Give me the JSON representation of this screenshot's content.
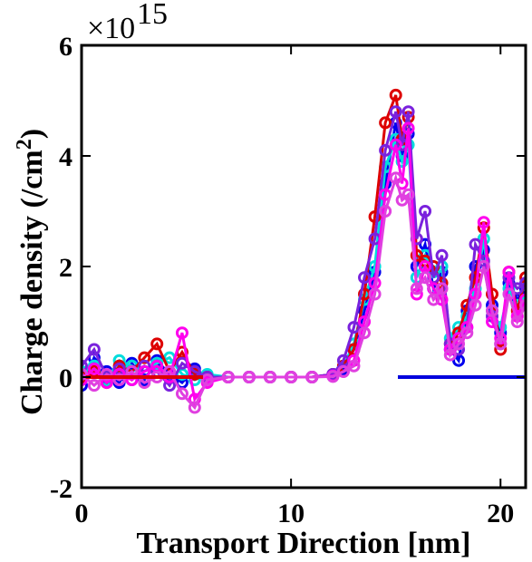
{
  "chart_data": {
    "type": "line",
    "title": "",
    "xlabel": "Transport Direction [nm]",
    "ylabel_main": "Charge density (/cm",
    "ylabel_sup": "2",
    "ylabel_close": ")",
    "exponent_prefix": "×10",
    "exponent_power": "15",
    "xlim": [
      0,
      21.2
    ],
    "ylim": [
      -2,
      6
    ],
    "xticks": [
      0,
      10,
      20
    ],
    "xtick_labels": [
      "0",
      "10",
      "20"
    ],
    "yticks": [
      -2,
      0,
      2,
      4,
      6
    ],
    "ytick_labels": [
      "-2",
      "0",
      "2",
      "4",
      "6"
    ],
    "y_scale_note": "values in units of 1e15 /cm^2",
    "grid": false,
    "legend": false,
    "series": [
      {
        "color": "#0000ee",
        "x": [
          0,
          0.6,
          1.2,
          1.8,
          2.4,
          3.0,
          3.6,
          4.2,
          4.8,
          5.4,
          6.0,
          7,
          8,
          9,
          10,
          11,
          12,
          12.5,
          13,
          13.5,
          14,
          14.5,
          15,
          15.3,
          15.6,
          16,
          16.4,
          16.8,
          17.2,
          17.6,
          18,
          18.4,
          18.8,
          19.2,
          19.6,
          20,
          20.4,
          20.8,
          21.2
        ],
        "y": [
          -0.15,
          0.35,
          0.1,
          -0.1,
          0.25,
          -0.05,
          0.3,
          0.05,
          -0.1,
          0.15,
          0,
          0,
          0,
          0,
          0,
          0,
          0.05,
          0.15,
          0.5,
          1.2,
          1.9,
          3.5,
          4.6,
          4.0,
          4.4,
          2.0,
          2.4,
          1.6,
          1.9,
          0.5,
          0.3,
          1.2,
          2.0,
          2.3,
          1.3,
          0.8,
          1.7,
          1.4,
          1.6
        ]
      },
      {
        "color": "#00dddd",
        "x": [
          0,
          0.6,
          1.2,
          1.8,
          2.4,
          3.0,
          3.6,
          4.2,
          4.8,
          5.4,
          6.0,
          7,
          8,
          9,
          10,
          11,
          12,
          12.5,
          13,
          13.5,
          14,
          14.5,
          15,
          15.3,
          15.6,
          16,
          16.4,
          16.8,
          17.2,
          17.6,
          18,
          18.4,
          18.8,
          19.2,
          19.6,
          20,
          20.4,
          20.8,
          21.2
        ],
        "y": [
          0.1,
          0.2,
          -0.05,
          0.3,
          0.2,
          0.1,
          0.25,
          0.35,
          0.05,
          -0.05,
          0.05,
          0,
          0,
          0,
          0,
          0,
          0.03,
          0.2,
          0.6,
          1.4,
          2.0,
          3.8,
          4.3,
          3.9,
          4.2,
          1.8,
          2.2,
          1.9,
          2.0,
          0.7,
          0.9,
          1.1,
          1.6,
          2.5,
          1.2,
          0.9,
          1.6,
          1.3,
          1.5
        ]
      },
      {
        "color": "#dd0000",
        "x": [
          0,
          0.6,
          1.2,
          1.8,
          2.4,
          3.0,
          3.6,
          4.2,
          4.8,
          5.4,
          6.0,
          7,
          8,
          9,
          10,
          11,
          12,
          12.5,
          13,
          13.5,
          14,
          14.5,
          15,
          15.3,
          15.6,
          16,
          16.4,
          16.8,
          17.2,
          17.6,
          18,
          18.4,
          18.8,
          19.2,
          19.6,
          20,
          20.4,
          20.8,
          21.2
        ],
        "y": [
          0,
          0.1,
          -0.1,
          0.2,
          0.1,
          0.35,
          0.6,
          0.1,
          0.45,
          0.05,
          0,
          0,
          0,
          0,
          0,
          0,
          0.05,
          0.2,
          0.5,
          1.5,
          2.9,
          4.6,
          5.1,
          4.3,
          4.7,
          2.2,
          2.1,
          2.0,
          1.7,
          0.6,
          0.8,
          1.3,
          1.8,
          2.7,
          1.5,
          0.5,
          1.9,
          1.2,
          1.8
        ]
      },
      {
        "color": "#7a22dd",
        "x": [
          0,
          0.6,
          1.2,
          1.8,
          2.4,
          3.0,
          3.6,
          4.2,
          4.8,
          5.4,
          6.0,
          7,
          8,
          9,
          10,
          11,
          12,
          12.5,
          13,
          13.5,
          14,
          14.5,
          15,
          15.3,
          15.6,
          16,
          16.4,
          16.8,
          17.2,
          17.6,
          18,
          18.4,
          18.8,
          19.2,
          19.6,
          20,
          20.4,
          20.8,
          21.2
        ],
        "y": [
          0.2,
          0.5,
          0.0,
          0.15,
          -0.05,
          0.2,
          0.1,
          -0.15,
          0.25,
          0.1,
          0,
          0,
          0,
          0,
          0,
          0,
          0.05,
          0.3,
          0.9,
          1.8,
          2.5,
          4.1,
          4.8,
          4.2,
          4.8,
          2.5,
          3.0,
          1.8,
          2.2,
          0.6,
          0.5,
          0.9,
          2.4,
          2.1,
          1.1,
          0.6,
          1.8,
          1.6,
          1.7
        ]
      },
      {
        "color": "#ff00ee",
        "x": [
          0,
          0.6,
          1.2,
          1.8,
          2.4,
          3.0,
          3.6,
          4.2,
          4.8,
          5.4,
          6.0,
          7,
          8,
          9,
          10,
          11,
          12,
          12.5,
          13,
          13.5,
          14,
          14.5,
          15,
          15.3,
          15.6,
          16,
          16.4,
          16.8,
          17.2,
          17.6,
          18,
          18.4,
          18.8,
          19.2,
          19.6,
          20,
          20.4,
          20.8,
          21.2
        ],
        "y": [
          -0.05,
          0.15,
          -0.1,
          0.05,
          -0.05,
          0.1,
          0.2,
          0.0,
          0.8,
          -0.4,
          -0.1,
          0,
          0,
          0,
          0,
          0,
          0.02,
          0.1,
          0.3,
          1.0,
          1.7,
          3.3,
          4.2,
          3.5,
          4.5,
          1.5,
          2.0,
          1.6,
          1.4,
          0.5,
          0.7,
          0.9,
          1.5,
          2.8,
          1.0,
          0.7,
          1.9,
          1.1,
          1.4
        ]
      },
      {
        "color": "#e040e0",
        "x": [
          0,
          0.6,
          1.2,
          1.8,
          2.4,
          3.0,
          3.6,
          4.2,
          4.8,
          5.4,
          6.0,
          7,
          8,
          9,
          10,
          11,
          12,
          12.5,
          13,
          13.5,
          14,
          14.5,
          15,
          15.3,
          15.6,
          16,
          16.4,
          16.8,
          17.2,
          17.6,
          18,
          18.4,
          18.8,
          19.2,
          19.6,
          20,
          20.4,
          20.8,
          21.2
        ],
        "y": [
          0.05,
          -0.15,
          0.05,
          -0.05,
          0.1,
          -0.1,
          0.0,
          0.1,
          -0.3,
          -0.55,
          -0.05,
          0,
          0,
          0,
          0,
          0,
          0.01,
          0.1,
          0.2,
          0.8,
          1.5,
          3.0,
          3.6,
          3.2,
          3.3,
          1.6,
          1.8,
          1.4,
          1.6,
          0.4,
          0.6,
          0.8,
          1.3,
          2.0,
          1.2,
          0.6,
          1.5,
          1.0,
          1.3
        ]
      }
    ],
    "reference_lines": [
      {
        "color": "#0000dd",
        "x": [
          15.1,
          21.2
        ],
        "y": [
          0,
          0
        ]
      },
      {
        "color": "#dd0000",
        "x": [
          0.2,
          5.8
        ],
        "y": [
          0,
          0
        ]
      }
    ]
  }
}
